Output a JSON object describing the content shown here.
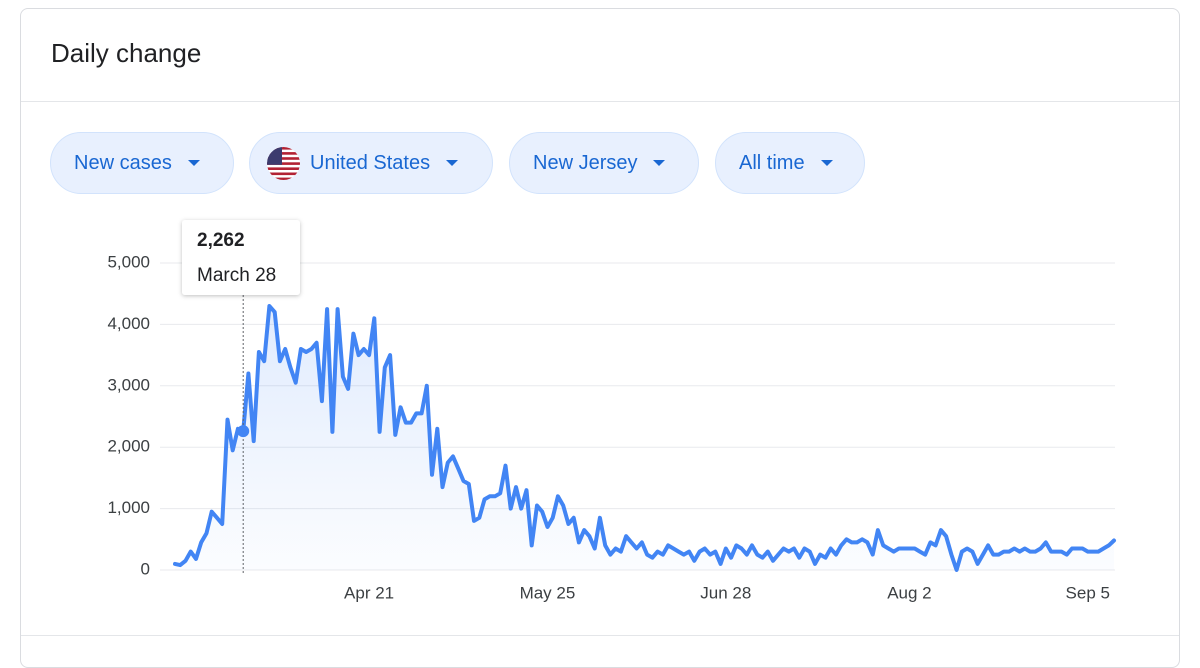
{
  "card": {
    "title": "Daily change"
  },
  "filters": [
    "New cases",
    "United States",
    "New Jersey",
    "All time"
  ],
  "chart_data": {
    "type": "line",
    "x": [
      "Mar 15",
      "Mar 16",
      "Mar 17",
      "Mar 18",
      "Mar 19",
      "Mar 20",
      "Mar 21",
      "Mar 22",
      "Mar 23",
      "Mar 24",
      "Mar 25",
      "Mar 26",
      "Mar 27",
      "Mar 28",
      "Mar 29",
      "Mar 30",
      "Mar 31",
      "Apr 1",
      "Apr 2",
      "Apr 3",
      "Apr 4",
      "Apr 5",
      "Apr 6",
      "Apr 7",
      "Apr 8",
      "Apr 9",
      "Apr 10",
      "Apr 11",
      "Apr 12",
      "Apr 13",
      "Apr 14",
      "Apr 15",
      "Apr 16",
      "Apr 17",
      "Apr 18",
      "Apr 19",
      "Apr 20",
      "Apr 21",
      "Apr 22",
      "Apr 23",
      "Apr 24",
      "Apr 25",
      "Apr 26",
      "Apr 27",
      "Apr 28",
      "Apr 29",
      "Apr 30",
      "May 1",
      "May 2",
      "May 3",
      "May 4",
      "May 5",
      "May 6",
      "May 7",
      "May 8",
      "May 9",
      "May 10",
      "May 11",
      "May 12",
      "May 13",
      "May 14",
      "May 15",
      "May 16",
      "May 17",
      "May 18",
      "May 19",
      "May 20",
      "May 21",
      "May 22",
      "May 23",
      "May 24",
      "May 25",
      "May 26",
      "May 27",
      "May 28",
      "May 29",
      "May 30",
      "May 31",
      "Jun 1",
      "Jun 2",
      "Jun 3",
      "Jun 4",
      "Jun 5",
      "Jun 6",
      "Jun 7",
      "Jun 8",
      "Jun 9",
      "Jun 10",
      "Jun 11",
      "Jun 12",
      "Jun 13",
      "Jun 14",
      "Jun 15",
      "Jun 16",
      "Jun 17",
      "Jun 18",
      "Jun 19",
      "Jun 20",
      "Jun 21",
      "Jun 22",
      "Jun 23",
      "Jun 24",
      "Jun 25",
      "Jun 26",
      "Jun 27",
      "Jun 28",
      "Jun 29",
      "Jun 30",
      "Jul 1",
      "Jul 2",
      "Jul 3",
      "Jul 4",
      "Jul 5",
      "Jul 6",
      "Jul 7",
      "Jul 8",
      "Jul 9",
      "Jul 10",
      "Jul 11",
      "Jul 12",
      "Jul 13",
      "Jul 14",
      "Jul 15",
      "Jul 16",
      "Jul 17",
      "Jul 18",
      "Jul 19",
      "Jul 20",
      "Jul 21",
      "Jul 22",
      "Jul 23",
      "Jul 24",
      "Jul 25",
      "Jul 26",
      "Jul 27",
      "Jul 28",
      "Jul 29",
      "Jul 30",
      "Jul 31",
      "Aug 1",
      "Aug 2",
      "Aug 3",
      "Aug 4",
      "Aug 5",
      "Aug 6",
      "Aug 7",
      "Aug 8",
      "Aug 9",
      "Aug 10",
      "Aug 11",
      "Aug 12",
      "Aug 13",
      "Aug 14",
      "Aug 15",
      "Aug 16",
      "Aug 17",
      "Aug 18",
      "Aug 19",
      "Aug 20",
      "Aug 21",
      "Aug 22",
      "Aug 23",
      "Aug 24",
      "Aug 25",
      "Aug 26",
      "Aug 27",
      "Aug 28",
      "Aug 29",
      "Aug 30",
      "Aug 31",
      "Sep 1",
      "Sep 2",
      "Sep 3",
      "Sep 4",
      "Sep 5",
      "Sep 6",
      "Sep 7",
      "Sep 8",
      "Sep 9",
      "Sep 10"
    ],
    "series": [
      {
        "color": "#4285f4",
        "values": [
          100,
          80,
          150,
          300,
          180,
          450,
          600,
          950,
          850,
          750,
          2450,
          1950,
          2300,
          2262,
          3200,
          2100,
          3550,
          3400,
          4300,
          4200,
          3400,
          3600,
          3300,
          3050,
          3600,
          3550,
          3600,
          3700,
          2750,
          4250,
          2250,
          4250,
          3150,
          2950,
          3850,
          3500,
          3600,
          3500,
          4100,
          2250,
          3300,
          3500,
          2200,
          2650,
          2400,
          2400,
          2550,
          2550,
          3000,
          1550,
          2300,
          1350,
          1750,
          1850,
          1650,
          1450,
          1400,
          800,
          850,
          1150,
          1200,
          1200,
          1250,
          1700,
          1000,
          1350,
          1000,
          1300,
          400,
          1050,
          950,
          700,
          850,
          1200,
          1050,
          750,
          850,
          450,
          650,
          550,
          350,
          850,
          400,
          250,
          350,
          300,
          550,
          450,
          350,
          450,
          250,
          200,
          300,
          250,
          400,
          350,
          300,
          250,
          300,
          150,
          300,
          350,
          250,
          300,
          100,
          350,
          200,
          400,
          350,
          250,
          400,
          250,
          200,
          300,
          150,
          250,
          350,
          300,
          350,
          200,
          350,
          300,
          100,
          250,
          200,
          350,
          250,
          400,
          500,
          450,
          450,
          500,
          450,
          250,
          650,
          400,
          350,
          300,
          350,
          350,
          350,
          350,
          300,
          250,
          450,
          400,
          650,
          550,
          250,
          0,
          300,
          350,
          300,
          100,
          250,
          400,
          250,
          250,
          300,
          300,
          350,
          300,
          350,
          300,
          300,
          350,
          450,
          300,
          300,
          300,
          250,
          350,
          350,
          350,
          300,
          300,
          300,
          350,
          400,
          480
        ]
      }
    ],
    "ylim": [
      0,
      5000
    ],
    "yticks": [
      0,
      {
        "value": 1000,
        "label": "1,000"
      },
      {
        "value": 2000,
        "label": "2,000"
      },
      {
        "value": 3000,
        "label": "3,000"
      },
      {
        "value": 4000,
        "label": "4,000"
      },
      {
        "value": 5000,
        "label": "5,000"
      }
    ],
    "xticks": [
      "Apr 21",
      "May 25",
      "Jun 28",
      "Aug 2",
      "Sep 5"
    ],
    "grid": true,
    "tooltip": {
      "label": "2,262",
      "date": "March 28"
    }
  }
}
